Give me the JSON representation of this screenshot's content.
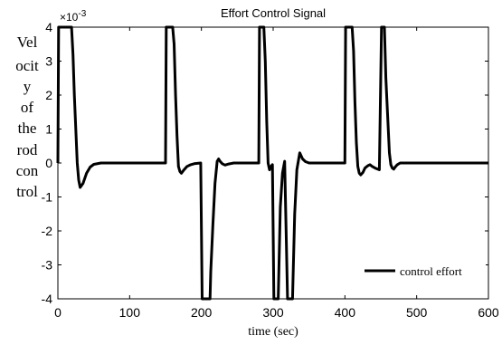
{
  "chart_data": {
    "type": "line",
    "title": "Effort Control Signal",
    "xlabel": "time (sec)",
    "ylabel_lines": [
      "Vel",
      "ocit",
      "y",
      "of",
      "the",
      "rod",
      "con",
      "trol"
    ],
    "y_multiplier": "×10",
    "y_exponent": "-3",
    "xlim": [
      0,
      600
    ],
    "ylim": [
      -4,
      4
    ],
    "x_ticks": [
      0,
      100,
      200,
      300,
      400,
      500,
      600
    ],
    "y_ticks": [
      -4,
      -3,
      -2,
      -1,
      0,
      1,
      2,
      3,
      4
    ],
    "x_tick_labels": [
      "0",
      "100",
      "200",
      "300",
      "400",
      "500",
      "600"
    ],
    "y_tick_labels": [
      "-4",
      "-3",
      "-2",
      "-1",
      "0",
      "1",
      "2",
      "3",
      "4"
    ],
    "grid": false,
    "legend_position": "bottom-right",
    "series": [
      {
        "name": "control effort",
        "color": "#000000",
        "x": [
          0,
          1,
          2,
          19,
          21,
          23,
          25,
          27,
          29,
          31,
          35,
          40,
          45,
          50,
          60,
          80,
          100,
          120,
          150,
          151,
          153,
          160,
          162,
          164,
          166,
          168,
          170,
          172,
          175,
          180,
          185,
          190,
          199,
          201,
          203,
          205,
          207,
          212,
          213,
          216,
          219,
          222,
          224,
          226,
          229,
          233,
          238,
          245,
          255,
          270,
          280,
          281,
          285,
          287,
          289,
          291,
          293,
          295,
          297,
          299,
          301,
          304,
          307,
          310,
          313,
          316,
          320,
          324,
          327,
          330,
          333,
          337,
          341,
          345,
          350,
          355,
          360,
          370,
          380,
          400,
          401,
          404,
          410,
          412,
          414,
          416,
          418,
          420,
          422,
          425,
          428,
          432,
          435,
          438,
          442,
          448,
          451,
          453,
          455,
          457,
          462,
          464,
          466,
          468,
          470,
          473,
          477,
          482,
          490,
          500,
          520,
          550,
          600
        ],
        "y": [
          0,
          4,
          4,
          4,
          3.2,
          2.0,
          1.0,
          0.0,
          -0.5,
          -0.72,
          -0.6,
          -0.3,
          -0.12,
          -0.04,
          0,
          0,
          0,
          0,
          0,
          4,
          4,
          4,
          3.5,
          2.0,
          0.8,
          -0.1,
          -0.25,
          -0.3,
          -0.22,
          -0.1,
          -0.05,
          -0.02,
          0,
          -4,
          -4,
          -4,
          -4,
          -4,
          -3.2,
          -1.8,
          -0.6,
          0.05,
          0.12,
          0.05,
          -0.02,
          -0.06,
          -0.03,
          0,
          0,
          0,
          0,
          4,
          4,
          4,
          3.0,
          1.2,
          0.0,
          -0.2,
          -0.1,
          -0.05,
          -4,
          -4,
          -4,
          -1.3,
          -0.3,
          0.05,
          -4,
          -4,
          -4,
          -1.5,
          -0.2,
          0.3,
          0.12,
          0.04,
          0,
          0,
          0,
          0,
          0,
          0,
          4,
          4,
          4,
          3.3,
          1.8,
          0.6,
          -0.1,
          -0.3,
          -0.35,
          -0.28,
          -0.15,
          -0.08,
          -0.05,
          -0.1,
          -0.15,
          -0.2,
          4,
          4,
          4,
          2.5,
          0.3,
          -0.05,
          -0.15,
          -0.18,
          -0.12,
          -0.05,
          0,
          0,
          0,
          0,
          0,
          0,
          0
        ]
      }
    ]
  }
}
